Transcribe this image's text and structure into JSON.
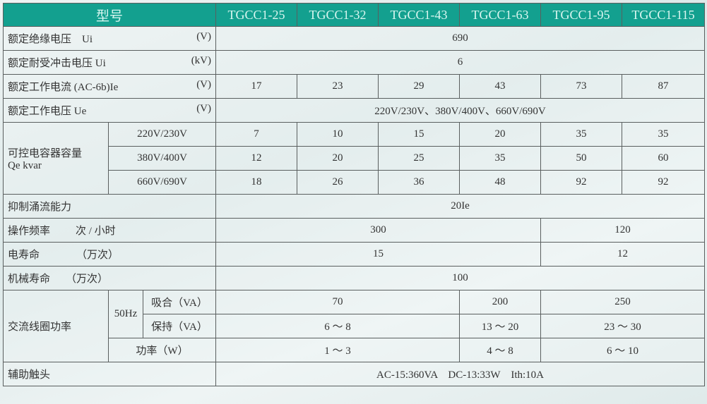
{
  "header": {
    "title": "型号",
    "models": [
      "TGCC1-25",
      "TGCC1-32",
      "TGCC1-43",
      "TGCC1-63",
      "TGCC1-95",
      "TGCC1-115"
    ]
  },
  "rows": {
    "insulation": {
      "label": "额定绝缘电压　Ui",
      "unit": "(V)",
      "value": "690"
    },
    "impulse": {
      "label": "额定耐受冲击电压 Ui",
      "unit": "(kV)",
      "value": "6"
    },
    "current": {
      "label": "额定工作电流 (AC-6b)Ie",
      "unit": "(V)",
      "values": [
        "17",
        "23",
        "29",
        "43",
        "73",
        "87"
      ]
    },
    "voltage": {
      "label": "额定工作电压 Ue",
      "unit": "(V)",
      "value": "220V/230V、380V/400V、660V/690V"
    },
    "capacity": {
      "label1": "可控电容器容量",
      "label2": "Qe kvar",
      "sub": [
        {
          "label": "220V/230V",
          "values": [
            "7",
            "10",
            "15",
            "20",
            "35",
            "35"
          ]
        },
        {
          "label": "380V/400V",
          "values": [
            "12",
            "20",
            "25",
            "35",
            "50",
            "60"
          ]
        },
        {
          "label": "660V/690V",
          "values": [
            "18",
            "26",
            "36",
            "48",
            "92",
            "92"
          ]
        }
      ]
    },
    "inrush": {
      "label": "抑制涌流能力",
      "value": "20Ie"
    },
    "frequency": {
      "label": "操作频率",
      "unit": "次 / 小时",
      "values": [
        "300",
        "120"
      ]
    },
    "electrical_life": {
      "label": "电寿命",
      "unit": "（万次）",
      "values": [
        "15",
        "12"
      ]
    },
    "mechanical_life": {
      "label": "机械寿命",
      "unit": "（万次）",
      "value": "100"
    },
    "coil": {
      "label": "交流线圈功率",
      "freq": "50Hz",
      "pickup": {
        "label": "吸合（VA）",
        "values": [
          "70",
          "200",
          "250"
        ]
      },
      "hold": {
        "label": "保持（VA）",
        "values": [
          "6 ～ 8",
          "13 ～ 20",
          "23 ～ 30"
        ]
      },
      "power": {
        "label": "功率（W）",
        "values": [
          "1 ～ 3",
          "4 ～ 8",
          "6 ～ 10"
        ]
      }
    },
    "auxiliary": {
      "label": "辅助触头",
      "value": "AC-15:360VA　DC-13:33W　Ith:10A"
    }
  },
  "colors": {
    "header_bg": "#13a08f",
    "header_text": "#d9f6f0",
    "border": "#5a5f5f"
  }
}
